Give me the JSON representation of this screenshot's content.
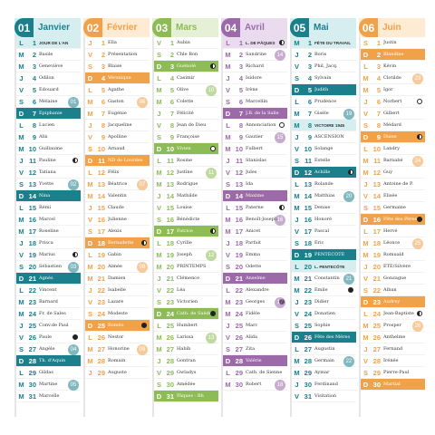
{
  "months": [
    {
      "number": "01",
      "name": "Janvier",
      "color": "#1b7f8c",
      "light": "#d7eef1",
      "days": [
        {
          "l": "L",
          "n": "1",
          "s": "JOUR DE L'AN",
          "h": true
        },
        {
          "l": "M",
          "n": "2",
          "s": "Basile"
        },
        {
          "l": "M",
          "n": "3",
          "s": "Geneviève"
        },
        {
          "l": "J",
          "n": "4",
          "s": "Odilon"
        },
        {
          "l": "V",
          "n": "5",
          "s": "Édouard"
        },
        {
          "l": "S",
          "n": "6",
          "s": "Mélaine"
        },
        {
          "l": "D",
          "n": "7",
          "s": "Épiphanie",
          "sun": true
        },
        {
          "l": "L",
          "n": "8",
          "s": "Lucien"
        },
        {
          "l": "M",
          "n": "9",
          "s": "Alix"
        },
        {
          "l": "M",
          "n": "10",
          "s": "Guillaume"
        },
        {
          "l": "J",
          "n": "11",
          "s": "Pauline"
        },
        {
          "l": "V",
          "n": "12",
          "s": "Tatiana"
        },
        {
          "l": "S",
          "n": "13",
          "s": "Yvette"
        },
        {
          "l": "D",
          "n": "14",
          "s": "Nina",
          "sun": true
        },
        {
          "l": "L",
          "n": "15",
          "s": "Rémi"
        },
        {
          "l": "M",
          "n": "16",
          "s": "Marcel"
        },
        {
          "l": "M",
          "n": "17",
          "s": "Roseline"
        },
        {
          "l": "J",
          "n": "18",
          "s": "Prisca"
        },
        {
          "l": "V",
          "n": "19",
          "s": "Marius"
        },
        {
          "l": "S",
          "n": "20",
          "s": "Sébastien"
        },
        {
          "l": "D",
          "n": "21",
          "s": "Agnès",
          "sun": true
        },
        {
          "l": "L",
          "n": "22",
          "s": "Vincent"
        },
        {
          "l": "M",
          "n": "23",
          "s": "Barnard"
        },
        {
          "l": "M",
          "n": "24",
          "s": "Fr. de Sales"
        },
        {
          "l": "J",
          "n": "25",
          "s": "Conv.de Paul"
        },
        {
          "l": "V",
          "n": "26",
          "s": "Paule"
        },
        {
          "l": "S",
          "n": "27",
          "s": "Angèle"
        },
        {
          "l": "D",
          "n": "28",
          "s": "Th. d'Aquin",
          "sun": true
        },
        {
          "l": "L",
          "n": "29",
          "s": "Gildas"
        },
        {
          "l": "M",
          "n": "30",
          "s": "Martine"
        },
        {
          "l": "M",
          "n": "31",
          "s": "Marcelle"
        }
      ]
    },
    {
      "number": "02",
      "name": "Février",
      "color": "#f0a24a",
      "light": "#fdebd4",
      "days": [
        {
          "l": "J",
          "n": "1",
          "s": "Ella"
        },
        {
          "l": "V",
          "n": "2",
          "s": "Présentation"
        },
        {
          "l": "S",
          "n": "3",
          "s": "Blaise"
        },
        {
          "l": "D",
          "n": "4",
          "s": "Véronique",
          "sun": true
        },
        {
          "l": "L",
          "n": "5",
          "s": "Agathe"
        },
        {
          "l": "M",
          "n": "6",
          "s": "Gaston"
        },
        {
          "l": "M",
          "n": "7",
          "s": "Eugénie"
        },
        {
          "l": "J",
          "n": "8",
          "s": "Jacqueline"
        },
        {
          "l": "V",
          "n": "9",
          "s": "Apolline"
        },
        {
          "l": "S",
          "n": "10",
          "s": "Arnaud"
        },
        {
          "l": "D",
          "n": "11",
          "s": "ND de Lourdes",
          "sun": true
        },
        {
          "l": "L",
          "n": "12",
          "s": "Félix"
        },
        {
          "l": "M",
          "n": "13",
          "s": "Béatrice"
        },
        {
          "l": "M",
          "n": "14",
          "s": "Valentin"
        },
        {
          "l": "J",
          "n": "15",
          "s": "Claude"
        },
        {
          "l": "V",
          "n": "16",
          "s": "Julienne"
        },
        {
          "l": "S",
          "n": "17",
          "s": "Alexis"
        },
        {
          "l": "D",
          "n": "18",
          "s": "Bernadette",
          "sun": true
        },
        {
          "l": "L",
          "n": "19",
          "s": "Gabin"
        },
        {
          "l": "M",
          "n": "20",
          "s": "Aimée"
        },
        {
          "l": "M",
          "n": "21",
          "s": "Damien"
        },
        {
          "l": "J",
          "n": "22",
          "s": "Isabelle"
        },
        {
          "l": "V",
          "n": "23",
          "s": "Lazare"
        },
        {
          "l": "S",
          "n": "24",
          "s": "Modeste"
        },
        {
          "l": "D",
          "n": "25",
          "s": "Roméo",
          "sun": true
        },
        {
          "l": "L",
          "n": "26",
          "s": "Nestor"
        },
        {
          "l": "M",
          "n": "27",
          "s": "Honorine"
        },
        {
          "l": "M",
          "n": "28",
          "s": "Romain"
        },
        {
          "l": "J",
          "n": "29",
          "s": "Auguste"
        }
      ]
    },
    {
      "number": "03",
      "name": "Mars",
      "color": "#8dbb55",
      "light": "#e5f0d6",
      "days": [
        {
          "l": "V",
          "n": "1",
          "s": "Aubin"
        },
        {
          "l": "S",
          "n": "2",
          "s": "Chle Bon"
        },
        {
          "l": "D",
          "n": "3",
          "s": "Guénolé",
          "sun": true
        },
        {
          "l": "L",
          "n": "4",
          "s": "Casimir"
        },
        {
          "l": "M",
          "n": "5",
          "s": "Olive"
        },
        {
          "l": "M",
          "n": "6",
          "s": "Colette"
        },
        {
          "l": "J",
          "n": "7",
          "s": "Félicité"
        },
        {
          "l": "V",
          "n": "8",
          "s": "Jean de Dieu"
        },
        {
          "l": "S",
          "n": "9",
          "s": "Françoise"
        },
        {
          "l": "D",
          "n": "10",
          "s": "Vivien",
          "sun": true
        },
        {
          "l": "L",
          "n": "11",
          "s": "Rosine"
        },
        {
          "l": "M",
          "n": "12",
          "s": "Justine"
        },
        {
          "l": "M",
          "n": "13",
          "s": "Rodrigue"
        },
        {
          "l": "J",
          "n": "14",
          "s": "Mathilde"
        },
        {
          "l": "V",
          "n": "15",
          "s": "Louise"
        },
        {
          "l": "S",
          "n": "16",
          "s": "Bénédicte"
        },
        {
          "l": "D",
          "n": "17",
          "s": "Patrice",
          "sun": true
        },
        {
          "l": "L",
          "n": "18",
          "s": "Cyrille"
        },
        {
          "l": "M",
          "n": "19",
          "s": "Joseph"
        },
        {
          "l": "M",
          "n": "20",
          "s": "PRINTEMPS"
        },
        {
          "l": "J",
          "n": "21",
          "s": "Clémence"
        },
        {
          "l": "V",
          "n": "22",
          "s": "Léa"
        },
        {
          "l": "S",
          "n": "23",
          "s": "Victorien"
        },
        {
          "l": "D",
          "n": "24",
          "s": "Cath. de Suède",
          "sun": true
        },
        {
          "l": "L",
          "n": "25",
          "s": "Humbert"
        },
        {
          "l": "M",
          "n": "26",
          "s": "Larissa"
        },
        {
          "l": "M",
          "n": "27",
          "s": "Habib"
        },
        {
          "l": "J",
          "n": "28",
          "s": "Gontran"
        },
        {
          "l": "V",
          "n": "29",
          "s": "Gwladys"
        },
        {
          "l": "S",
          "n": "30",
          "s": "Amédée"
        },
        {
          "l": "D",
          "n": "31",
          "s": "Pâques - Bh",
          "sun": true
        }
      ]
    },
    {
      "number": "04",
      "name": "Avril",
      "color": "#9c6aa8",
      "light": "#eadcee",
      "days": [
        {
          "l": "L",
          "n": "1",
          "s": "L. DE PÂQUES",
          "h": true
        },
        {
          "l": "M",
          "n": "2",
          "s": "Sandrine"
        },
        {
          "l": "M",
          "n": "3",
          "s": "Richard"
        },
        {
          "l": "J",
          "n": "4",
          "s": "Isidore"
        },
        {
          "l": "V",
          "n": "5",
          "s": "Irène"
        },
        {
          "l": "S",
          "n": "6",
          "s": "Marcellin"
        },
        {
          "l": "D",
          "n": "7",
          "s": "J.B. de la Salle",
          "sun": true
        },
        {
          "l": "L",
          "n": "8",
          "s": "Annonciation"
        },
        {
          "l": "M",
          "n": "9",
          "s": "Gautier"
        },
        {
          "l": "M",
          "n": "10",
          "s": "Fulbert"
        },
        {
          "l": "J",
          "n": "11",
          "s": "Stanislas"
        },
        {
          "l": "V",
          "n": "12",
          "s": "Jules"
        },
        {
          "l": "S",
          "n": "13",
          "s": "Ida"
        },
        {
          "l": "D",
          "n": "14",
          "s": "Maxime",
          "sun": true
        },
        {
          "l": "L",
          "n": "15",
          "s": "Paterne"
        },
        {
          "l": "M",
          "n": "16",
          "s": "Benoît-Joseph"
        },
        {
          "l": "M",
          "n": "17",
          "s": "Anicet"
        },
        {
          "l": "J",
          "n": "18",
          "s": "Parfait"
        },
        {
          "l": "V",
          "n": "19",
          "s": "Emma"
        },
        {
          "l": "S",
          "n": "20",
          "s": "Odette"
        },
        {
          "l": "D",
          "n": "21",
          "s": "Anselme",
          "sun": true
        },
        {
          "l": "L",
          "n": "22",
          "s": "Alexandre"
        },
        {
          "l": "M",
          "n": "23",
          "s": "Georges"
        },
        {
          "l": "M",
          "n": "24",
          "s": "Fidèle"
        },
        {
          "l": "J",
          "n": "25",
          "s": "Marc"
        },
        {
          "l": "V",
          "n": "26",
          "s": "Alida"
        },
        {
          "l": "S",
          "n": "27",
          "s": "Zita"
        },
        {
          "l": "D",
          "n": "28",
          "s": "Valérie",
          "sun": true
        },
        {
          "l": "L",
          "n": "29",
          "s": "Cath. de Sienne"
        },
        {
          "l": "M",
          "n": "30",
          "s": "Robert"
        }
      ]
    },
    {
      "number": "05",
      "name": "Mai",
      "color": "#1b7f8c",
      "light": "#d7eef1",
      "days": [
        {
          "l": "M",
          "n": "1",
          "s": "FÊTE DU TRAVAIL",
          "h": true
        },
        {
          "l": "J",
          "n": "2",
          "s": "Boris"
        },
        {
          "l": "V",
          "n": "3",
          "s": "Phil, Jacq."
        },
        {
          "l": "S",
          "n": "4",
          "s": "Sylvain"
        },
        {
          "l": "D",
          "n": "5",
          "s": "Judith",
          "sun": true
        },
        {
          "l": "L",
          "n": "6",
          "s": "Prudence"
        },
        {
          "l": "M",
          "n": "7",
          "s": "Gisèle"
        },
        {
          "l": "M",
          "n": "8",
          "s": "VICTOIRE 1945",
          "h": true
        },
        {
          "l": "J",
          "n": "9",
          "s": "ASCENSION"
        },
        {
          "l": "V",
          "n": "10",
          "s": "Solange"
        },
        {
          "l": "S",
          "n": "11",
          "s": "Estelle"
        },
        {
          "l": "D",
          "n": "12",
          "s": "Achille",
          "sun": true
        },
        {
          "l": "L",
          "n": "13",
          "s": "Rolande"
        },
        {
          "l": "M",
          "n": "14",
          "s": "Matthias"
        },
        {
          "l": "M",
          "n": "15",
          "s": "Denise"
        },
        {
          "l": "J",
          "n": "16",
          "s": "Honoré"
        },
        {
          "l": "V",
          "n": "17",
          "s": "Pascal"
        },
        {
          "l": "S",
          "n": "18",
          "s": "Éric"
        },
        {
          "l": "D",
          "n": "19",
          "s": "PENTECÔTE",
          "sun": true
        },
        {
          "l": "L",
          "n": "20",
          "s": "L. PENTECÔTE",
          "h": true
        },
        {
          "l": "M",
          "n": "21",
          "s": "Constantin"
        },
        {
          "l": "M",
          "n": "22",
          "s": "Émile"
        },
        {
          "l": "J",
          "n": "23",
          "s": "Didier"
        },
        {
          "l": "V",
          "n": "24",
          "s": "Donatien"
        },
        {
          "l": "S",
          "n": "25",
          "s": "Sophie"
        },
        {
          "l": "D",
          "n": "26",
          "s": "Fête des Mères",
          "sun": true
        },
        {
          "l": "L",
          "n": "27",
          "s": "Augustin"
        },
        {
          "l": "M",
          "n": "28",
          "s": "Germain"
        },
        {
          "l": "M",
          "n": "29",
          "s": "Aymar"
        },
        {
          "l": "J",
          "n": "30",
          "s": "Ferdinand"
        },
        {
          "l": "V",
          "n": "31",
          "s": "Visitation"
        }
      ]
    },
    {
      "number": "06",
      "name": "Juin",
      "color": "#f0a24a",
      "light": "#fdebd4",
      "days": [
        {
          "l": "S",
          "n": "1",
          "s": "Justin"
        },
        {
          "l": "D",
          "n": "2",
          "s": "Blandine",
          "sun": true
        },
        {
          "l": "L",
          "n": "3",
          "s": "Kévin"
        },
        {
          "l": "M",
          "n": "4",
          "s": "Clotilde"
        },
        {
          "l": "M",
          "n": "5",
          "s": "Igor"
        },
        {
          "l": "J",
          "n": "6",
          "s": "Norbert"
        },
        {
          "l": "V",
          "n": "7",
          "s": "Gilbert"
        },
        {
          "l": "S",
          "n": "8",
          "s": "Médard"
        },
        {
          "l": "D",
          "n": "9",
          "s": "Diane",
          "sun": true
        },
        {
          "l": "L",
          "n": "10",
          "s": "Landry"
        },
        {
          "l": "M",
          "n": "11",
          "s": "Barnabé"
        },
        {
          "l": "M",
          "n": "12",
          "s": "Guy"
        },
        {
          "l": "J",
          "n": "13",
          "s": "Antoine de P."
        },
        {
          "l": "V",
          "n": "14",
          "s": "Élisée"
        },
        {
          "l": "S",
          "n": "15",
          "s": "Germaine"
        },
        {
          "l": "D",
          "n": "16",
          "s": "Fête des Pères",
          "sun": true
        },
        {
          "l": "L",
          "n": "17",
          "s": "Hervé"
        },
        {
          "l": "M",
          "n": "18",
          "s": "Léonce"
        },
        {
          "l": "M",
          "n": "19",
          "s": "Romuald"
        },
        {
          "l": "J",
          "n": "20",
          "s": "ÉTÉ/Silvère"
        },
        {
          "l": "V",
          "n": "21",
          "s": "Gonzague"
        },
        {
          "l": "S",
          "n": "22",
          "s": "Alban"
        },
        {
          "l": "D",
          "n": "23",
          "s": "Audrey",
          "sun": true
        },
        {
          "l": "L",
          "n": "24",
          "s": "Jean-Baptiste"
        },
        {
          "l": "M",
          "n": "25",
          "s": "Prosper"
        },
        {
          "l": "M",
          "n": "26",
          "s": "Anthelme"
        },
        {
          "l": "J",
          "n": "27",
          "s": "Fernand"
        },
        {
          "l": "V",
          "n": "28",
          "s": "Irénée"
        },
        {
          "l": "S",
          "n": "29",
          "s": "Pierre-Paul"
        },
        {
          "l": "D",
          "n": "30",
          "s": "Martial",
          "sun": true
        }
      ]
    }
  ],
  "moons": {
    "0": {
      "11": "half",
      "19": "half",
      "26": "full"
    },
    "1": {
      "18": "half",
      "25": "full"
    },
    "2": {
      "3": "half",
      "10": "new",
      "17": "half",
      "24": "full"
    },
    "3": {
      "1": "half",
      "8": "new",
      "15": "half",
      "23": "full"
    },
    "4": {
      "12": "half",
      "22": "full"
    },
    "5": {
      "6": "new",
      "9": "half",
      "16": "full",
      "24": "half"
    }
  },
  "weeks": {
    "0": {
      "5": "01",
      "12": "02",
      "19": "03",
      "26": "04",
      "29": "05"
    },
    "1": {
      "5": "06",
      "12": "07",
      "19": "08",
      "26": "09"
    },
    "2": {
      "4": "10",
      "11": "11",
      "18": "12",
      "25": "13"
    },
    "3": {
      "1": "14",
      "8": "15",
      "15": "16",
      "22": "17",
      "29": "18"
    },
    "4": {
      "6": "19",
      "13": "20",
      "20": "21",
      "27": "22"
    },
    "5": {
      "3": "23",
      "10": "24",
      "17": "25",
      "24": "26"
    }
  }
}
